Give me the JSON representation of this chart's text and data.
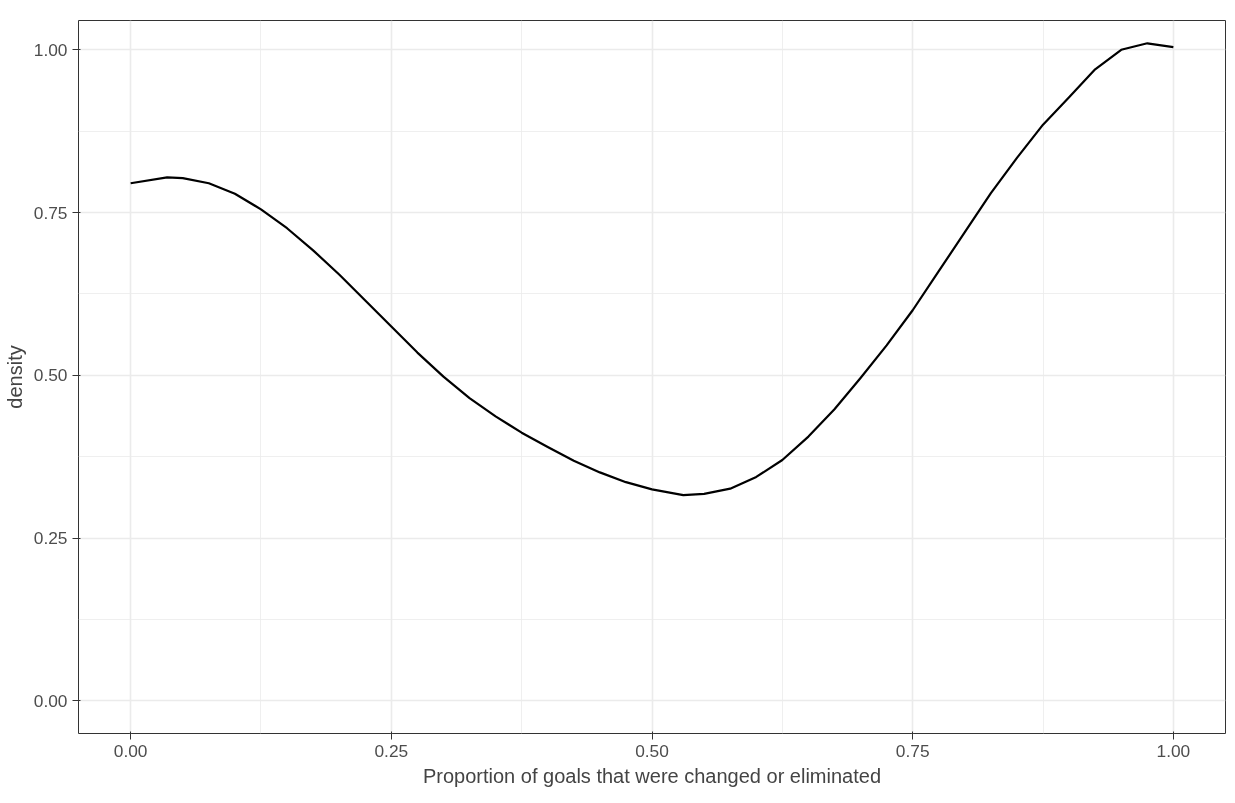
{
  "chart_data": {
    "type": "line",
    "xlabel": "Proportion of goals that were changed or eliminated",
    "ylabel": "density",
    "x": [
      0,
      0.035,
      0.05,
      0.075,
      0.1,
      0.125,
      0.15,
      0.175,
      0.2,
      0.225,
      0.25,
      0.275,
      0.3,
      0.325,
      0.35,
      0.375,
      0.4,
      0.425,
      0.45,
      0.475,
      0.5,
      0.53,
      0.55,
      0.575,
      0.6,
      0.625,
      0.65,
      0.675,
      0.7,
      0.725,
      0.75,
      0.775,
      0.8,
      0.825,
      0.85,
      0.875,
      0.9,
      0.925,
      0.95,
      0.975,
      1.0
    ],
    "series": [
      {
        "color": "#000000",
        "values": [
          0.795,
          0.804,
          0.803,
          0.795,
          0.779,
          0.755,
          0.726,
          0.692,
          0.655,
          0.615,
          0.575,
          0.535,
          0.498,
          0.465,
          0.437,
          0.412,
          0.39,
          0.369,
          0.351,
          0.336,
          0.325,
          0.316,
          0.318,
          0.326,
          0.344,
          0.37,
          0.406,
          0.448,
          0.496,
          0.546,
          0.6,
          0.66,
          0.72,
          0.78,
          0.834,
          0.885,
          0.927,
          0.97,
          1.0,
          1.01,
          1.004
        ]
      }
    ],
    "xlim": [
      -0.05,
      1.05
    ],
    "ylim": [
      -0.05,
      1.045
    ],
    "xticks": [
      {
        "value": 0,
        "label": "0.00"
      },
      {
        "value": 0.25,
        "label": "0.25"
      },
      {
        "value": 0.5,
        "label": "0.50"
      },
      {
        "value": 0.75,
        "label": "0.75"
      },
      {
        "value": 1,
        "label": "1.00"
      }
    ],
    "yticks": [
      {
        "value": 0,
        "label": "0.00"
      },
      {
        "value": 0.25,
        "label": "0.25"
      },
      {
        "value": 0.5,
        "label": "0.50"
      },
      {
        "value": 0.75,
        "label": "0.75"
      },
      {
        "value": 1,
        "label": "1.00"
      }
    ],
    "grid": true,
    "line_style": "solid"
  }
}
